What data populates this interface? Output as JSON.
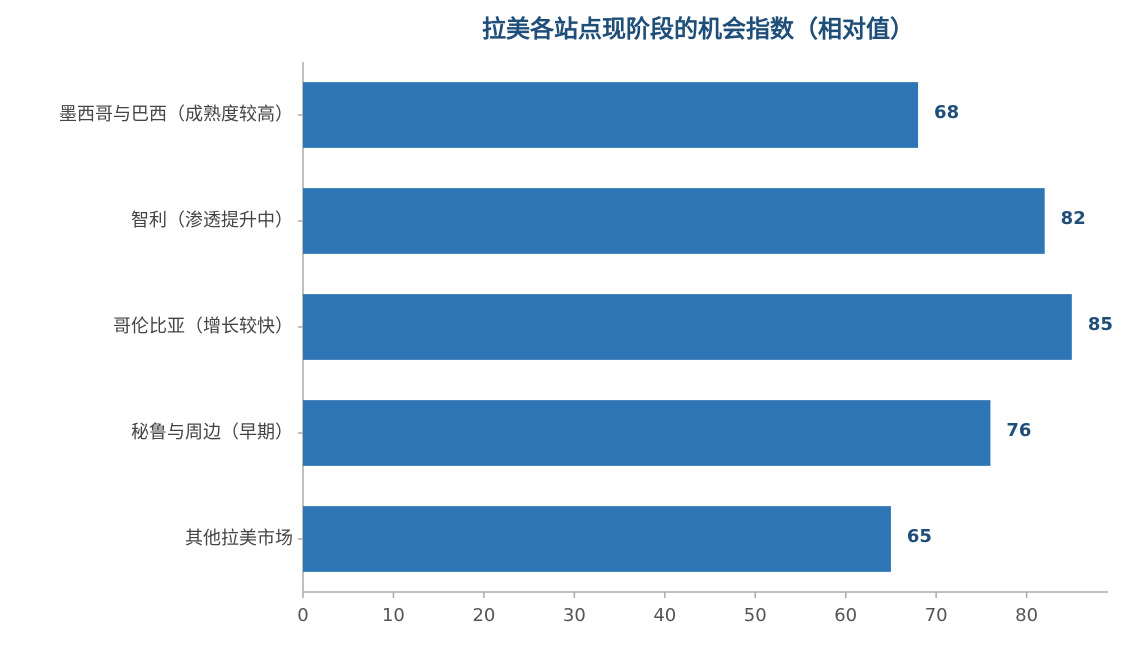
{
  "chart_data": {
    "type": "barh",
    "title": "拉美各站点现阶段的机会指数（相对值）",
    "categories": [
      "墨西哥与巴西（成熟度较高）",
      "智利（渗透提升中）",
      "哥伦比亚（增长较快）",
      "秘鲁与周边（早期）",
      "其他拉美市场"
    ],
    "values": [
      68,
      82,
      85,
      76,
      65
    ],
    "color": "#2e75b6",
    "xlim": [
      0,
      89
    ],
    "xticks": [
      0,
      10,
      20,
      30,
      40,
      50,
      60,
      70,
      80
    ],
    "grid": false
  }
}
